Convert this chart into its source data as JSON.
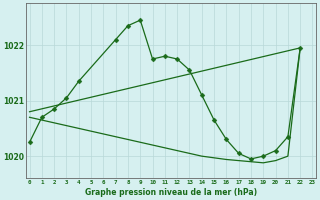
{
  "title": "Graphe pression niveau de la mer (hPa)",
  "bg_color": "#d6f0f0",
  "grid_color": "#b8d8d8",
  "line_color": "#1a6b1a",
  "x_ticks": [
    0,
    1,
    2,
    3,
    4,
    5,
    6,
    7,
    8,
    9,
    10,
    11,
    12,
    13,
    14,
    15,
    16,
    17,
    18,
    19,
    20,
    21,
    22,
    23
  ],
  "xlim": [
    -0.3,
    23.3
  ],
  "ylim": [
    1019.6,
    1022.75
  ],
  "yticks": [
    1020,
    1021,
    1022
  ],
  "series_wiggly": {
    "x": [
      0,
      1,
      2,
      3,
      4,
      7,
      8,
      9,
      10,
      11,
      12,
      13,
      14,
      15,
      16,
      17,
      18,
      19,
      20,
      21,
      22
    ],
    "y": [
      1020.25,
      1020.7,
      1020.85,
      1021.05,
      1021.35,
      1022.1,
      1022.35,
      1022.45,
      1021.75,
      1021.8,
      1021.75,
      1021.55,
      1021.1,
      1020.65,
      1020.3,
      1020.05,
      1019.95,
      1020.0,
      1020.1,
      1020.35,
      1021.95
    ]
  },
  "series_upper": {
    "x": [
      0,
      22
    ],
    "y": [
      1020.8,
      1021.95
    ]
  },
  "series_lower": {
    "x": [
      0,
      1,
      2,
      3,
      4,
      5,
      6,
      7,
      8,
      9,
      10,
      11,
      12,
      13,
      14,
      15,
      16,
      17,
      18,
      19,
      20,
      21,
      22
    ],
    "y": [
      1020.7,
      1020.65,
      1020.6,
      1020.55,
      1020.5,
      1020.45,
      1020.4,
      1020.35,
      1020.3,
      1020.25,
      1020.2,
      1020.15,
      1020.1,
      1020.05,
      1020.0,
      1019.97,
      1019.94,
      1019.92,
      1019.9,
      1019.88,
      1019.92,
      1020.0,
      1021.95
    ]
  }
}
